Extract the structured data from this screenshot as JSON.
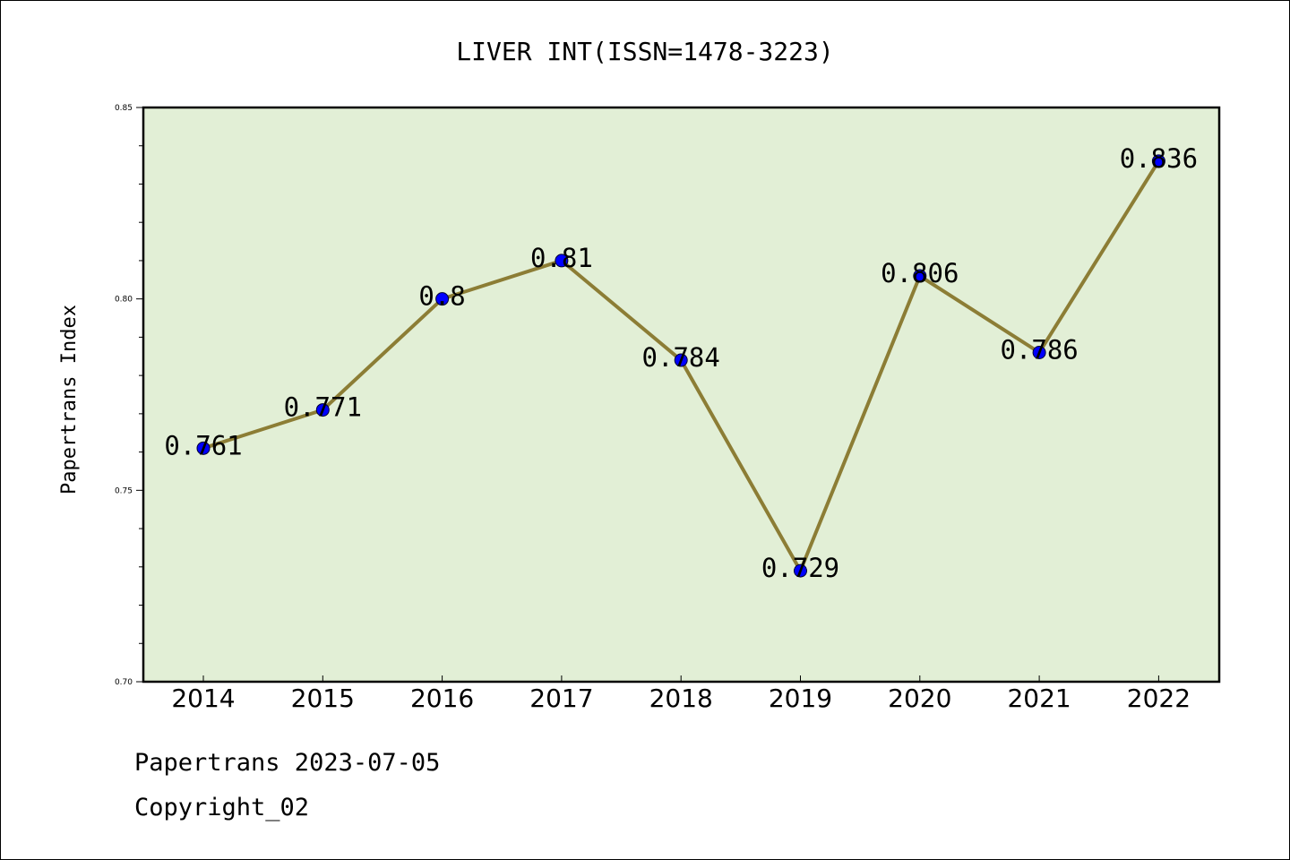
{
  "chart_data": {
    "type": "line",
    "title": "LIVER INT(ISSN=1478-3223)",
    "ylabel": "Papertrans Index",
    "xlabel": "",
    "categories": [
      "2014",
      "2015",
      "2016",
      "2017",
      "2018",
      "2019",
      "2020",
      "2021",
      "2022"
    ],
    "values": [
      0.761,
      0.771,
      0.8,
      0.81,
      0.784,
      0.729,
      0.806,
      0.786,
      0.836
    ],
    "data_labels": [
      "0.761",
      "0.771",
      "0.8",
      "0.81",
      "0.784",
      "0.729",
      "0.806",
      "0.786",
      "0.836"
    ],
    "ylim": [
      0.7,
      0.85
    ],
    "yticks": [
      "0.70",
      "0.75",
      "0.80",
      "0.85"
    ],
    "grid": false,
    "colors": {
      "plot_bg": "#e2efd6",
      "line": "#8c7d35",
      "marker": "#0000ff"
    }
  },
  "footer": {
    "line1": "Papertrans 2023-07-05",
    "line2": "Copyright_02"
  }
}
